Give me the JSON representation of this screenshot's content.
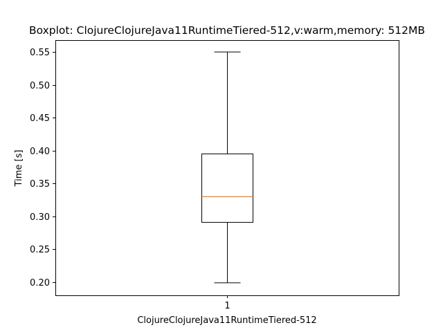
{
  "chart_data": {
    "type": "box",
    "title": "Boxplot: ClojureClojureJava11RuntimeTiered-512,v:warm,memory: 512MB",
    "xlabel": "ClojureClojureJava11RuntimeTiered-512",
    "ylabel": "Time [s]",
    "ylim": [
      0.18,
      0.568
    ],
    "yticks": [
      "0.20",
      "0.25",
      "0.30",
      "0.35",
      "0.40",
      "0.45",
      "0.50",
      "0.55"
    ],
    "categories": [
      "1"
    ],
    "boxes": [
      {
        "category": "1",
        "whisker_low": 0.199,
        "q1": 0.291,
        "median": 0.33,
        "q3": 0.395,
        "whisker_high": 0.55
      }
    ],
    "colors": {
      "box": "#000000",
      "median": "#ff7f0e"
    },
    "grid": false,
    "legend": "none"
  }
}
